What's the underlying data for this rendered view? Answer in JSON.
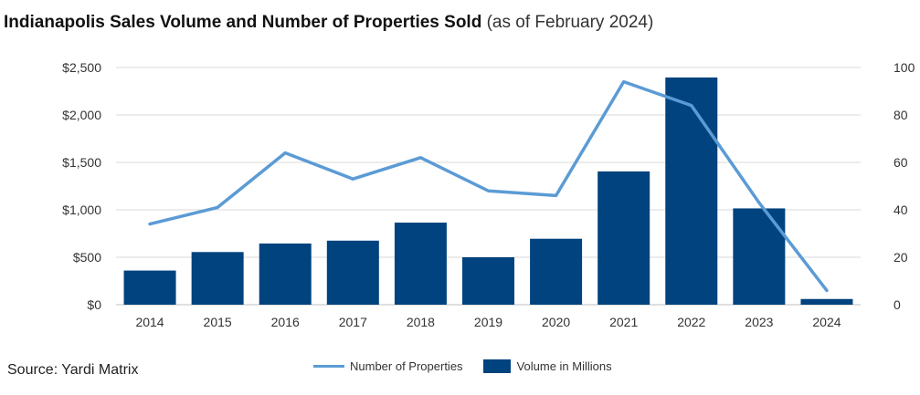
{
  "title": {
    "main": "Indianapolis Sales Volume and Number of Properties Sold",
    "sub": "(as of February 2024)"
  },
  "source": "Source: Yardi Matrix",
  "legend": {
    "line_label": "Number of Properties",
    "bar_label": "Volume in Millions"
  },
  "colors": {
    "bar": "#00437e",
    "line": "#5b9bd5",
    "grid": "#d9d9d9"
  },
  "chart_data": {
    "type": "bar",
    "categories": [
      "2014",
      "2015",
      "2016",
      "2017",
      "2018",
      "2019",
      "2020",
      "2021",
      "2022",
      "2023",
      "2024"
    ],
    "series": [
      {
        "name": "Volume in Millions",
        "type": "bar",
        "axis": "left",
        "values": [
          360,
          555,
          645,
          675,
          865,
          500,
          695,
          1405,
          2395,
          1015,
          60
        ]
      },
      {
        "name": "Number of Properties",
        "type": "line",
        "axis": "right",
        "values": [
          34,
          41,
          64,
          53,
          62,
          48,
          46,
          94,
          84,
          43,
          6
        ]
      }
    ],
    "y_left": {
      "ticks": [
        "$0",
        "$500",
        "$1,000",
        "$1,500",
        "$2,000",
        "$2,500"
      ],
      "range": [
        0,
        2500
      ]
    },
    "y_right": {
      "ticks": [
        "0",
        "20",
        "40",
        "60",
        "80",
        "100"
      ],
      "range": [
        0,
        100
      ]
    },
    "grid": true,
    "legend_position": "bottom"
  }
}
